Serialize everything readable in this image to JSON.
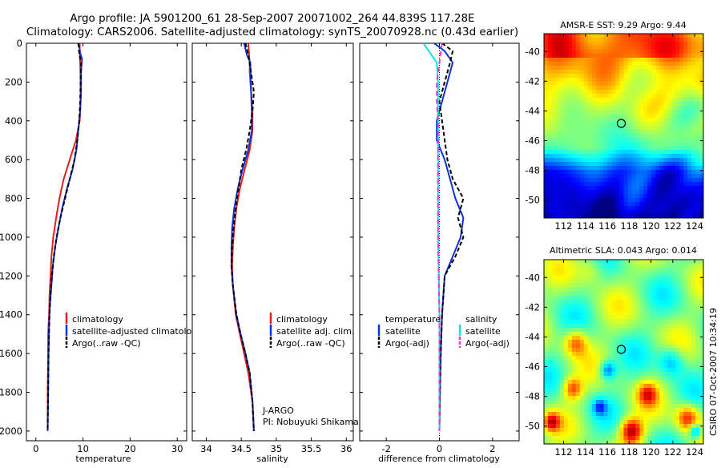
{
  "titles": {
    "line1": "Argo profile: JA 5901200_61 28-Sep-2007 20071002_264 44.839S 117.28E",
    "line2": "Climatology: CARS2006. Satellite-adjusted climatology: synTS_20070928.nc (0.43d earlier)"
  },
  "colors": {
    "climatology": "#e0201b",
    "satellite": "#1030d8",
    "argo": "#000000",
    "sat_diff_sal": "#16e0e0",
    "argo_diff_sal": "#e03ad8"
  },
  "chart_data": [
    {
      "id": "temperature",
      "type": "line",
      "xlabel": "temperature",
      "ylabel": "",
      "xlim": [
        -2,
        32
      ],
      "ylim": [
        2050,
        0
      ],
      "xticks": [
        0,
        10,
        20,
        30
      ],
      "xtick_labels": [
        "0",
        "10",
        "20",
        "30"
      ],
      "yticks": [
        0,
        200,
        400,
        600,
        800,
        1000,
        1200,
        1400,
        1600,
        1800,
        2000
      ],
      "ytick_labels": [
        "0",
        "200",
        "400",
        "600",
        "800",
        "1000",
        "1200",
        "1400",
        "1600",
        "1800",
        "2000"
      ],
      "legend": [
        "climatology",
        "satellite-adjusted climatology",
        "Argo(..raw -QC)"
      ],
      "series": [
        {
          "name": "climatology",
          "color": "#e0201b",
          "dash": "",
          "x": [
            9.3,
            9.3,
            9.4,
            9.5,
            9.5,
            9.3,
            8.5,
            7.2,
            5.9,
            5.0,
            4.3,
            3.7,
            3.3,
            3.1,
            2.9,
            2.8,
            2.6,
            2.6,
            2.5,
            2.5
          ],
          "y": [
            0,
            50,
            100,
            200,
            300,
            400,
            500,
            600,
            700,
            800,
            900,
            1000,
            1100,
            1200,
            1300,
            1400,
            1500,
            1600,
            1800,
            2000
          ]
        },
        {
          "name": "satellite-adjusted climatology",
          "color": "#1030d8",
          "dash": "",
          "x": [
            9.1,
            9.4,
            9.8,
            9.6,
            9.6,
            9.4,
            9.0,
            8.6,
            7.8,
            6.6,
            5.6,
            4.8,
            4.1,
            3.6,
            3.3,
            3.0,
            2.8,
            2.7,
            2.6,
            2.5
          ],
          "y": [
            0,
            50,
            80,
            150,
            250,
            350,
            450,
            550,
            650,
            750,
            850,
            950,
            1050,
            1150,
            1250,
            1350,
            1450,
            1600,
            1800,
            2000
          ]
        },
        {
          "name": "Argo(..raw -QC)",
          "color": "#000000",
          "dash": "5,3",
          "x": [
            9.0,
            9.2,
            9.6,
            9.5,
            9.4,
            9.2,
            8.8,
            8.2,
            7.2,
            6.2,
            5.2,
            4.4,
            3.8,
            3.4,
            3.1,
            2.9,
            2.8,
            2.7,
            2.6,
            2.5
          ],
          "y": [
            0,
            50,
            100,
            200,
            300,
            400,
            500,
            600,
            700,
            800,
            900,
            1000,
            1100,
            1200,
            1300,
            1400,
            1500,
            1600,
            1800,
            2000
          ]
        }
      ]
    },
    {
      "id": "salinity",
      "type": "line",
      "xlabel": "salinity",
      "ylabel": "",
      "xlim": [
        33.8,
        36.1
      ],
      "ylim": [
        2050,
        0
      ],
      "xticks": [
        34,
        34.5,
        35,
        35.5,
        36
      ],
      "xtick_labels": [
        "34",
        "34.5",
        "35",
        "35.5",
        "36"
      ],
      "legend": [
        "climatology",
        "satellite adj. clim.",
        "Argo(..raw -QC)"
      ],
      "annotation": [
        "J-ARGO",
        "PI: Nobuyuki Shikama"
      ],
      "series": [
        {
          "name": "climatology",
          "color": "#e0201b",
          "dash": "",
          "x": [
            34.6,
            34.62,
            34.62,
            34.64,
            34.66,
            34.66,
            34.62,
            34.55,
            34.48,
            34.43,
            34.4,
            34.38,
            34.37,
            34.38,
            34.42,
            34.48,
            34.54,
            34.6,
            34.66,
            34.68
          ],
          "y": [
            0,
            100,
            150,
            250,
            350,
            450,
            550,
            650,
            750,
            850,
            950,
            1050,
            1150,
            1250,
            1400,
            1500,
            1600,
            1700,
            1850,
            2000
          ]
        },
        {
          "name": "satellite adj. clim.",
          "color": "#1030d8",
          "dash": "",
          "x": [
            34.54,
            34.58,
            34.63,
            34.64,
            34.65,
            34.65,
            34.6,
            34.52,
            34.45,
            34.4,
            34.37,
            34.36,
            34.36,
            34.38,
            34.43,
            34.49,
            34.56,
            34.62,
            34.66,
            34.68
          ],
          "y": [
            0,
            60,
            100,
            250,
            350,
            450,
            550,
            650,
            750,
            850,
            950,
            1050,
            1150,
            1250,
            1400,
            1500,
            1600,
            1700,
            1850,
            2000
          ]
        },
        {
          "name": "Argo(..raw -QC)",
          "color": "#000000",
          "dash": "5,3",
          "x": [
            34.56,
            34.6,
            34.64,
            34.68,
            34.66,
            34.62,
            34.57,
            34.5,
            34.46,
            34.42,
            34.39,
            34.37,
            34.36,
            34.38,
            34.43,
            34.49,
            34.56,
            34.62,
            34.66,
            34.68
          ],
          "y": [
            0,
            60,
            150,
            250,
            350,
            450,
            550,
            650,
            750,
            850,
            950,
            1050,
            1150,
            1250,
            1400,
            1500,
            1600,
            1700,
            1850,
            2000
          ]
        }
      ]
    },
    {
      "id": "difference",
      "type": "line",
      "xlabel": "difference from climatology",
      "ylabel": "",
      "xlim": [
        -3,
        3
      ],
      "ylim": [
        2050,
        0
      ],
      "xticks": [
        -2,
        0,
        2
      ],
      "xtick_labels": [
        "-2",
        "0",
        "2"
      ],
      "legend": [
        "temperature",
        "satellite",
        "Argo(-adj)",
        "salinity",
        "satellite",
        "Argo(-adj)"
      ],
      "series": [
        {
          "name": "temperature satellite",
          "color": "#1030d8",
          "dash": "",
          "x": [
            -0.2,
            0.2,
            0.5,
            0.3,
            0.1,
            -0.1,
            -0.1,
            0.2,
            0.4,
            0.6,
            0.9,
            0.8,
            0.5,
            0.2,
            0.1,
            0.05,
            0.02,
            0.0
          ],
          "y": [
            0,
            40,
            100,
            200,
            300,
            400,
            500,
            600,
            700,
            800,
            900,
            1000,
            1100,
            1200,
            1400,
            1600,
            1800,
            2000
          ]
        },
        {
          "name": "temperature Argo(-adj)",
          "color": "#000000",
          "dash": "5,3",
          "x": [
            0.1,
            0.5,
            0.4,
            0.2,
            0.0,
            0.1,
            0.2,
            0.3,
            0.5,
            0.9,
            0.7,
            0.9,
            0.6,
            0.2,
            0.1,
            0.05,
            0.02,
            0.0
          ],
          "y": [
            0,
            40,
            100,
            200,
            300,
            400,
            500,
            600,
            700,
            800,
            900,
            1000,
            1100,
            1200,
            1400,
            1600,
            1800,
            2000
          ]
        },
        {
          "name": "salinity satellite",
          "color": "#16e0e0",
          "dash": "",
          "x": [
            -0.6,
            -0.4,
            -0.1,
            -0.05,
            -0.05,
            -0.05,
            -0.05,
            -0.05,
            -0.05,
            0.0,
            0.0,
            0.0
          ],
          "y": [
            0,
            40,
            100,
            200,
            300,
            400,
            600,
            800,
            1000,
            1400,
            1800,
            2000
          ]
        },
        {
          "name": "salinity Argo(-adj)",
          "color": "#e03ad8",
          "dash": "6,4",
          "x": [
            0.1,
            0.0,
            -0.1,
            -0.1,
            -0.05,
            -0.05,
            -0.05,
            -0.05,
            0.0,
            0.0,
            0.0
          ],
          "y": [
            0,
            100,
            200,
            300,
            400,
            600,
            800,
            1000,
            1400,
            1800,
            2000
          ]
        }
      ]
    },
    {
      "id": "amsre_sst_map",
      "type": "heatmap",
      "title": "AMSR-E SST: 9.29 Argo: 9.44",
      "xticks": [
        112,
        114,
        116,
        118,
        120,
        122,
        124
      ],
      "xtick_labels": [
        "112",
        "114",
        "116",
        "118",
        "120",
        "122",
        "124"
      ],
      "yticks": [
        -40,
        -42,
        -44,
        -46,
        -48,
        -50
      ],
      "ytick_labels": [
        "-40",
        "-42",
        "-44",
        "-46",
        "-48",
        "-50"
      ],
      "xlim": [
        110.2,
        124.8
      ],
      "ylim": [
        -51.2,
        -38.8
      ],
      "marker": {
        "lon": 117.28,
        "lat": -44.839
      }
    },
    {
      "id": "altimetric_sla_map",
      "type": "heatmap",
      "title": "Altimetric SLA: 0.043 Argo: 0.014",
      "xticks": [
        112,
        114,
        116,
        118,
        120,
        122,
        124
      ],
      "xtick_labels": [
        "112",
        "114",
        "116",
        "118",
        "120",
        "122",
        "124"
      ],
      "yticks": [
        -40,
        -42,
        -44,
        -46,
        -48,
        -50
      ],
      "ytick_labels": [
        "-40",
        "-42",
        "-44",
        "-46",
        "-48",
        "-50"
      ],
      "xlim": [
        110.2,
        124.8
      ],
      "ylim": [
        -51.2,
        -38.8
      ],
      "marker": {
        "lon": 117.28,
        "lat": -44.839
      }
    }
  ],
  "footer": {
    "stamp": "CSIRO 07-Oct-2007 10:34:19"
  }
}
